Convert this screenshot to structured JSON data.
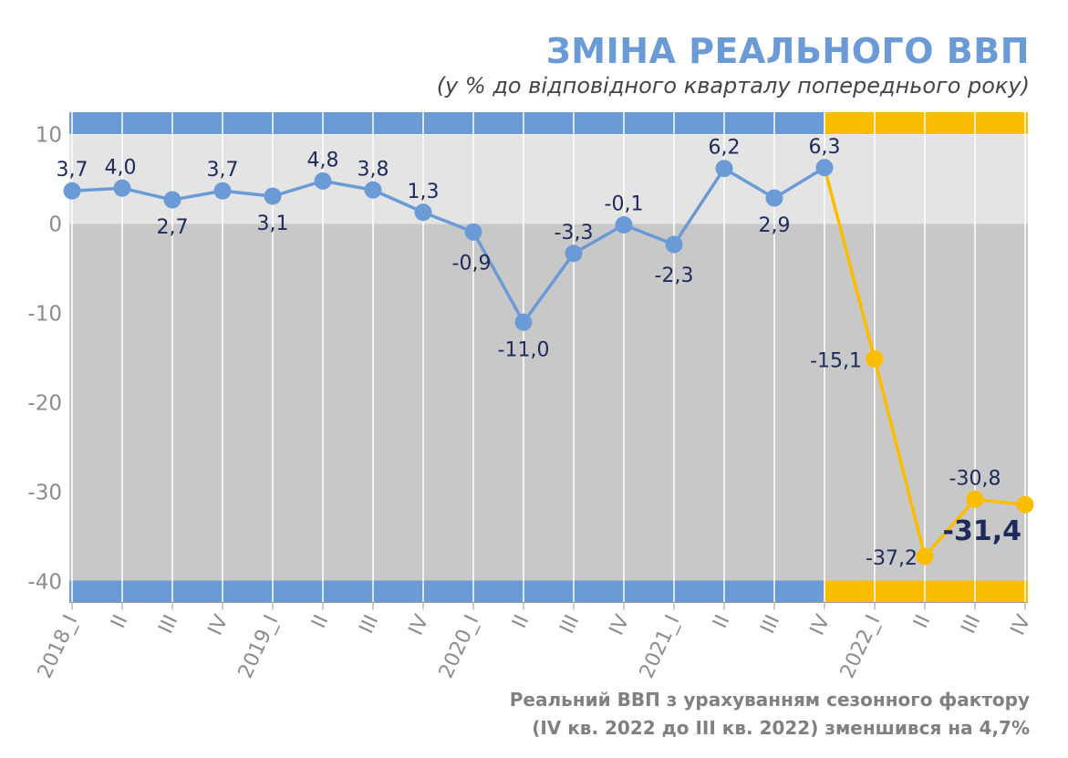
{
  "title": "ЗМІНА РЕАЛЬНОГО ВВП",
  "subtitle": "(у % до відповідного кварталу попереднього року)",
  "footnote": {
    "line1": "Реальний ВВП з урахуванням сезонного фактору",
    "line2": "(IV кв. 2022 до III кв. 2022) зменшився на 4,7%"
  },
  "colors": {
    "prewar": "#6b9bd6",
    "war": "#fbbd00",
    "label": "#1f2a5c",
    "band_positive": "#e4e4e4",
    "band_negative": "#c8c8c8"
  },
  "chart_data": {
    "type": "line",
    "title": "ЗМІНА РЕАЛЬНОГО ВВП",
    "subtitle": "(у % до відповідного кварталу попереднього року)",
    "categories": [
      "2018_I",
      "II",
      "III",
      "IV",
      "2019_I",
      "II",
      "III",
      "IV",
      "2020_I",
      "II",
      "III",
      "IV",
      "2021_I",
      "II",
      "III",
      "IV",
      "2022_I",
      "II",
      "III",
      "IV"
    ],
    "values": [
      3.7,
      4.0,
      2.7,
      3.7,
      3.1,
      4.8,
      3.8,
      1.3,
      -0.9,
      -11.0,
      -3.3,
      -0.1,
      -2.3,
      6.2,
      2.9,
      6.3,
      -15.1,
      -37.2,
      -30.8,
      -31.4
    ],
    "labels": [
      "3,7",
      "4,0",
      "2,7",
      "3,7",
      "3,1",
      "4,8",
      "3,8",
      "1,3",
      "-0,9",
      "-11,0",
      "-3,3",
      "-0,1",
      "-2,3",
      "6,2",
      "2,9",
      "6,3",
      "-15,1",
      "-37,2",
      "-30,8",
      "-31,4"
    ],
    "highlight_last": true,
    "war_start_index": 15,
    "ylim": [
      -40,
      10
    ],
    "yticks": [
      "10",
      "0",
      "-10",
      "-20",
      "-30",
      "-40"
    ],
    "grid": false,
    "xlabel": "",
    "ylabel": ""
  }
}
